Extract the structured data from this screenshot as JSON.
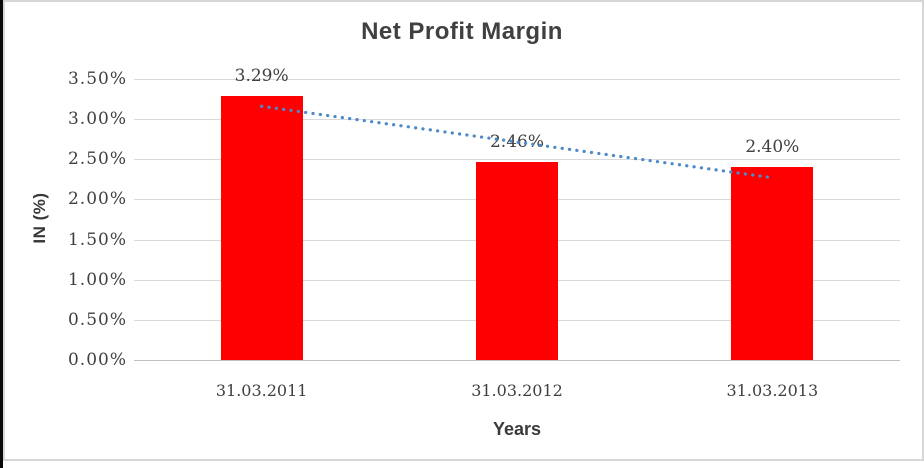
{
  "chart_data": {
    "type": "bar",
    "title": "Net Profit Margin",
    "categories": [
      "31.03.2011",
      "31.03.2012",
      "31.03.2013"
    ],
    "values": [
      3.29,
      2.46,
      2.4
    ],
    "data_labels": [
      "3.29%",
      "2.46%",
      "2.40%"
    ],
    "xlabel": "Years",
    "ylabel": "IN (%)",
    "ylim": [
      0,
      3.5
    ],
    "ytick_step": 0.5,
    "ytick_labels": [
      "0.00%",
      "0.50%",
      "1.00%",
      "1.50%",
      "2.00%",
      "2.50%",
      "3.00%",
      "3.50%"
    ],
    "grid": true,
    "legend": false,
    "colors": {
      "bar": "#FF0000",
      "trendline": "#4E8AC8",
      "text": "#404040",
      "gridline": "#D9D9D9",
      "axis_line": "#BFBFBF"
    },
    "trendline": {
      "style": "dotted",
      "endpoints": [
        3.16,
        2.27
      ]
    }
  }
}
